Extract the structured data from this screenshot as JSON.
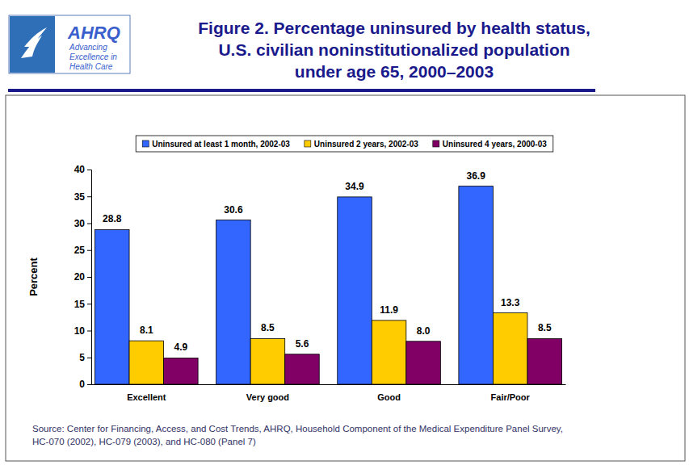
{
  "chart_data": {
    "type": "bar",
    "title": [
      "Figure 2. Percentage uninsured by health status,",
      "U.S. civilian noninstitutionalized population",
      "under age 65, 2000–2003"
    ],
    "logo": [
      "AHRQ",
      "Advancing",
      "Excellence in",
      "Health Care"
    ],
    "y_label": "Percent",
    "categories": [
      "Excellent",
      "Very good",
      "Good",
      "Fair/Poor"
    ],
    "series": [
      {
        "name": "Uninsured at least 1 month, 2002-03",
        "color": "#3366ff",
        "values": [
          28.8,
          30.6,
          34.9,
          36.9
        ],
        "value_labels": [
          "28.8",
          "30.6",
          "34.9",
          "36.9"
        ]
      },
      {
        "name": "Uninsured 2 years, 2002-03",
        "color": "#ffcc00",
        "values": [
          8.1,
          8.5,
          11.9,
          13.3
        ],
        "value_labels": [
          "8.1",
          "8.5",
          "11.9",
          "13.3"
        ]
      },
      {
        "name": "Uninsured 4 years, 2000-03",
        "color": "#800066",
        "values": [
          4.9,
          5.6,
          8.0,
          8.5
        ],
        "value_labels": [
          "4.9",
          "5.6",
          "8.0",
          "8.5"
        ]
      }
    ],
    "ylim": [
      0,
      40
    ],
    "yticks": [
      0,
      5,
      10,
      15,
      20,
      25,
      30,
      35,
      40
    ],
    "grid": false,
    "legend": "top",
    "data_labels": true,
    "source": [
      "Source: Center for Financing, Access, and Cost Trends, AHRQ, Household Component of the Medical Expenditure Panel Survey,",
      "HC-070 (2002), HC-079 (2003), and HC-080 (Panel 7)"
    ]
  }
}
